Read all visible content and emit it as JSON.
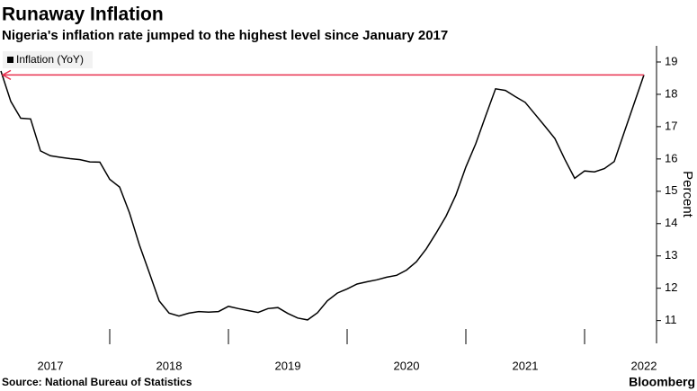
{
  "chart_data": {
    "type": "line",
    "title": "Runaway Inflation",
    "subtitle": "Nigeria's inflation rate jumped to the highest level since January 2017",
    "y_axis_label": "Percent",
    "source": "Source: National Bureau of Statistics",
    "brand": "Bloomberg",
    "x": [
      "2017-01",
      "2017-02",
      "2017-03",
      "2017-04",
      "2017-05",
      "2017-06",
      "2017-07",
      "2017-08",
      "2017-09",
      "2017-10",
      "2017-11",
      "2017-12",
      "2018-01",
      "2018-02",
      "2018-03",
      "2018-04",
      "2018-05",
      "2018-06",
      "2018-07",
      "2018-08",
      "2018-09",
      "2018-10",
      "2018-11",
      "2018-12",
      "2019-01",
      "2019-02",
      "2019-03",
      "2019-04",
      "2019-05",
      "2019-06",
      "2019-07",
      "2019-08",
      "2019-09",
      "2019-10",
      "2019-11",
      "2019-12",
      "2020-01",
      "2020-02",
      "2020-03",
      "2020-04",
      "2020-05",
      "2020-06",
      "2020-07",
      "2020-08",
      "2020-09",
      "2020-10",
      "2020-11",
      "2020-12",
      "2021-01",
      "2021-02",
      "2021-03",
      "2021-04",
      "2021-05",
      "2021-06",
      "2021-07",
      "2021-08",
      "2021-09",
      "2021-10",
      "2021-11",
      "2021-12",
      "2022-01",
      "2022-02",
      "2022-03",
      "2022-04",
      "2022-05",
      "2022-06"
    ],
    "series": [
      {
        "name": "Inflation (YoY)",
        "color": "#000000",
        "values": [
          18.72,
          17.78,
          17.26,
          17.24,
          16.25,
          16.1,
          16.05,
          16.01,
          15.98,
          15.91,
          15.9,
          15.37,
          15.13,
          14.33,
          13.34,
          12.48,
          11.61,
          11.23,
          11.14,
          11.23,
          11.28,
          11.26,
          11.28,
          11.44,
          11.37,
          11.31,
          11.25,
          11.37,
          11.4,
          11.22,
          11.08,
          11.02,
          11.24,
          11.61,
          11.85,
          11.98,
          12.13,
          12.2,
          12.26,
          12.34,
          12.4,
          12.56,
          12.82,
          13.22,
          13.71,
          14.23,
          14.89,
          15.75,
          16.47,
          17.33,
          18.17,
          18.12,
          17.93,
          17.75,
          17.38,
          17.01,
          16.63,
          15.99,
          15.4,
          15.63,
          15.6,
          15.7,
          15.92,
          16.82,
          17.71,
          18.6
        ]
      }
    ],
    "annotation_color": "#e8314f",
    "xlim": [
      "2016-12",
      "2022-07"
    ],
    "xticks": [
      "2017",
      "2018",
      "2019",
      "2020",
      "2021",
      "2022"
    ],
    "ylim": [
      10.35,
      19.5
    ],
    "yticks": [
      11,
      12,
      13,
      14,
      15,
      16,
      17,
      18,
      19
    ],
    "legend": "top-left"
  }
}
